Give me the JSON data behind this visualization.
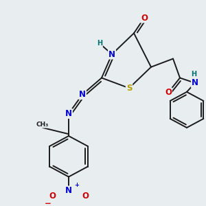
{
  "bg_color": "#e8edf0",
  "bond_color": "#1a1a1a",
  "bond_width": 1.4,
  "dbl_off": 0.012,
  "colors": {
    "N": "#0000cc",
    "O": "#cc0000",
    "S": "#b8a000",
    "H": "#007070",
    "C": "#1a1a1a"
  },
  "fs": 8.5,
  "fss": 7.0
}
